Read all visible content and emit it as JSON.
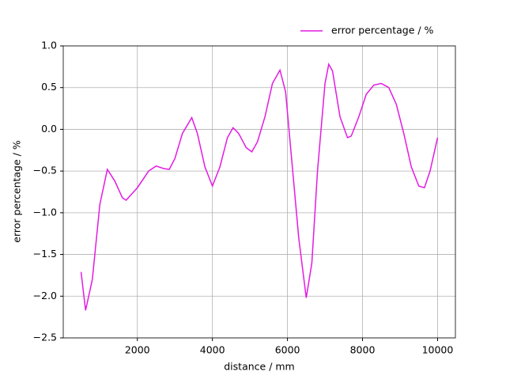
{
  "chart_data": {
    "type": "line",
    "x_label": "distance / mm",
    "y_label": "error percentage / %",
    "x": [
      500,
      620,
      800,
      1000,
      1200,
      1400,
      1600,
      1700,
      2000,
      2300,
      2500,
      2700,
      2850,
      3000,
      3200,
      3450,
      3600,
      3800,
      4000,
      4200,
      4400,
      4550,
      4700,
      4900,
      5050,
      5200,
      5400,
      5600,
      5800,
      5950,
      6100,
      6300,
      6500,
      6650,
      6800,
      7000,
      7100,
      7200,
      7400,
      7600,
      7700,
      7900,
      8100,
      8300,
      8500,
      8700,
      8900,
      9100,
      9300,
      9500,
      9650,
      9800,
      10000
    ],
    "series": [
      {
        "name": "error percentage / %",
        "color": "#e31be3",
        "values": [
          -1.71,
          -2.17,
          -1.8,
          -0.9,
          -0.48,
          -0.62,
          -0.82,
          -0.85,
          -0.7,
          -0.5,
          -0.44,
          -0.47,
          -0.48,
          -0.35,
          -0.05,
          0.14,
          -0.05,
          -0.45,
          -0.68,
          -0.45,
          -0.1,
          0.02,
          -0.05,
          -0.22,
          -0.27,
          -0.15,
          0.15,
          0.55,
          0.71,
          0.45,
          -0.3,
          -1.3,
          -2.02,
          -1.6,
          -0.5,
          0.55,
          0.78,
          0.7,
          0.15,
          -0.1,
          -0.08,
          0.15,
          0.42,
          0.53,
          0.55,
          0.5,
          0.3,
          -0.05,
          -0.45,
          -0.68,
          -0.7,
          -0.5,
          -0.1
        ]
      }
    ],
    "xlim": [
      25,
      10475
    ],
    "ylim": [
      -2.5,
      1.0
    ],
    "xticks": [
      2000,
      4000,
      6000,
      8000,
      10000
    ],
    "yticks": [
      {
        "value": -2.5,
        "label": "−2.5"
      },
      {
        "value": -2.0,
        "label": "−2.0"
      },
      {
        "value": -1.5,
        "label": "−1.5"
      },
      {
        "value": -1.0,
        "label": "−1.0"
      },
      {
        "value": -0.5,
        "label": "−0.5"
      },
      {
        "value": 0.0,
        "label": "0.0"
      },
      {
        "value": 0.5,
        "label": "0.5"
      },
      {
        "value": 1.0,
        "label": "1.0"
      }
    ],
    "grid": true,
    "legend": "upper right outside"
  }
}
